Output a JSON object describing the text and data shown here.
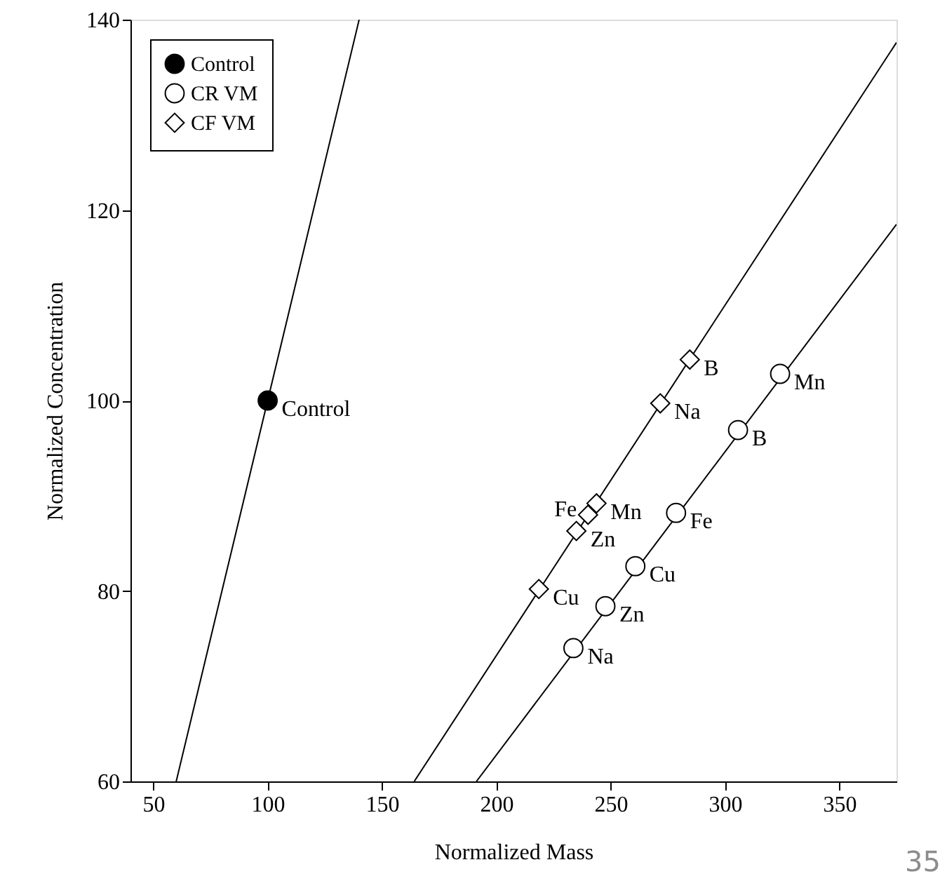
{
  "chart_data": {
    "type": "scatter",
    "xlabel": "Normalized Mass",
    "ylabel": "Normalized Concentration",
    "xlim": [
      40,
      375
    ],
    "ylim": [
      60,
      140
    ],
    "xticks": [
      50,
      100,
      150,
      200,
      250,
      300,
      350
    ],
    "yticks": [
      60,
      80,
      100,
      120,
      140
    ],
    "grid": false,
    "legend": "top left",
    "series": [
      {
        "name": "Control",
        "marker": "circle",
        "color": "#000000",
        "x": [
          100
        ],
        "values": [
          100
        ],
        "value_labels": [
          "Control"
        ]
      },
      {
        "name": "CR VM",
        "marker": "circle",
        "color": "#ffffff",
        "x": [
          233.7,
          247.7,
          260.8,
          278.6,
          305.7,
          324.1
        ],
        "values": [
          74.0,
          78.4,
          82.6,
          88.2,
          96.9,
          102.8
        ],
        "value_labels": [
          "Na",
          "Zn",
          "Cu",
          "Fe",
          "B",
          "Mn"
        ]
      },
      {
        "name": "CF VM",
        "marker": "diamond",
        "color": "#ffffff",
        "x": [
          218.6,
          235.0,
          240.1,
          243.8,
          271.7,
          284.6
        ],
        "values": [
          80.2,
          86.3,
          88.0,
          89.2,
          99.7,
          104.3
        ],
        "value_labels": [
          "Cu",
          "Zn",
          "Fe",
          "Mn",
          "Na",
          "B"
        ]
      },
      {
        "type": "line",
        "color": "#000000",
        "x": [
          60,
          140
        ],
        "values": [
          60,
          140
        ]
      },
      {
        "type": "line",
        "color": "#000000",
        "x": [
          164.1,
          375
        ],
        "values": [
          60,
          137.6
        ]
      },
      {
        "type": "line",
        "color": "#000000",
        "x": [
          191.3,
          375
        ],
        "values": [
          60,
          118.5
        ]
      }
    ],
    "annotations": [
      "35"
    ]
  }
}
